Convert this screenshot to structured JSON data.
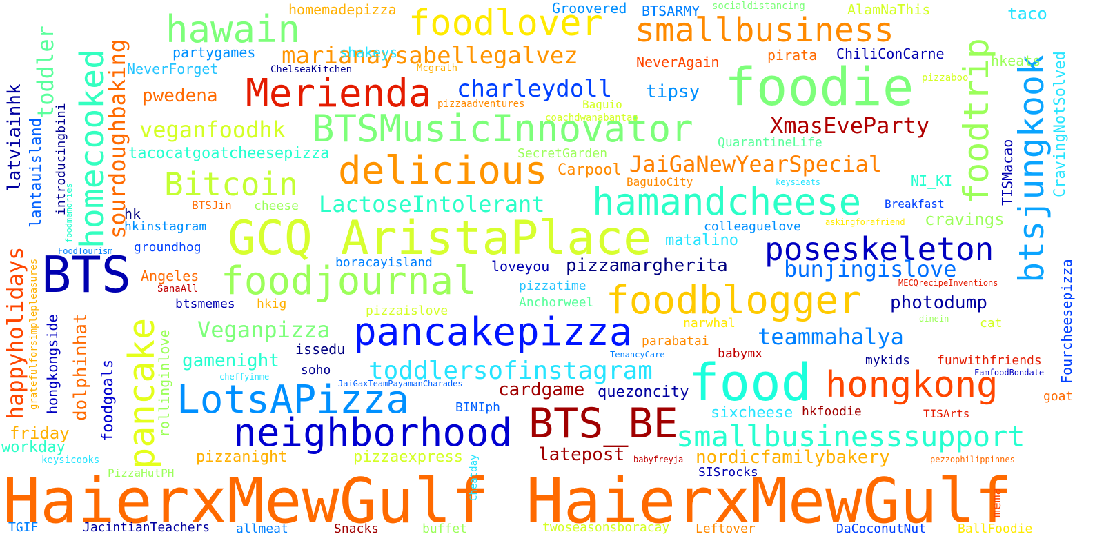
{
  "words": [
    {
      "text": "HaierxMewGulf HaierxMewGulf",
      "color": "#ff6a00",
      "vertical": false
    },
    {
      "text": "GCQ AristaPlace",
      "color": "#d7ff2f",
      "vertical": false
    },
    {
      "text": "food",
      "color": "#1cffdc",
      "vertical": false
    },
    {
      "text": "foodie",
      "color": "#7dff7a",
      "vertical": false
    },
    {
      "text": "BTS",
      "color": "#0000b0",
      "vertical": false
    },
    {
      "text": "pancakepizza",
      "color": "#0014ff",
      "vertical": false
    },
    {
      "text": "neighborhood",
      "color": "#0000d0",
      "vertical": false
    },
    {
      "text": "BTS_BE",
      "color": "#a00000",
      "vertical": false
    },
    {
      "text": "foodjournal",
      "color": "#9cff5a",
      "vertical": false
    },
    {
      "text": "BTSMusicInnovator",
      "color": "#7dff7a",
      "vertical": false
    },
    {
      "text": "hamandcheese",
      "color": "#2cffc8",
      "vertical": false
    },
    {
      "text": "LotsAPizza",
      "color": "#0090ff",
      "vertical": false
    },
    {
      "text": "smallbusiness",
      "color": "#ff8a00",
      "vertical": false
    },
    {
      "text": "foodlover",
      "color": "#ffea00",
      "vertical": false
    },
    {
      "text": "hawain",
      "color": "#7dff7a",
      "vertical": false
    },
    {
      "text": "Merienda",
      "color": "#e41b00",
      "vertical": false
    },
    {
      "text": "delicious",
      "color": "#ff9400",
      "vertical": false
    },
    {
      "text": "foodblogger",
      "color": "#ffca00",
      "vertical": false
    },
    {
      "text": "hongkong",
      "color": "#ff4600",
      "vertical": false
    },
    {
      "text": "smallbusinesssupport",
      "color": "#26ffd0",
      "vertical": false
    },
    {
      "text": "poseskeleton",
      "color": "#0000c0",
      "vertical": false
    },
    {
      "text": "Bitcoin",
      "color": "#c4ff34",
      "vertical": false
    },
    {
      "text": "toddlersofinstagram",
      "color": "#26e4ff",
      "vertical": false
    },
    {
      "text": "homecooked",
      "color": "#34ffc0",
      "vertical": true
    },
    {
      "text": "pancake",
      "color": "#e4ff1c",
      "vertical": true
    },
    {
      "text": "btsjungkook",
      "color": "#0aa4ff",
      "vertical": true
    },
    {
      "text": "foodtrip",
      "color": "#9cff5a",
      "vertical": true
    },
    {
      "text": "marianaysabellegalvez",
      "color": "#ff9400",
      "vertical": false
    },
    {
      "text": "charleydoll",
      "color": "#0040ff",
      "vertical": false
    },
    {
      "text": "veganfoodhk",
      "color": "#d4ff26",
      "vertical": false
    },
    {
      "text": "XmasEveParty",
      "color": "#b00000",
      "vertical": false
    },
    {
      "text": "JaiGaNewYearSpecial",
      "color": "#ff8000",
      "vertical": false
    },
    {
      "text": "LactoseIntolerant",
      "color": "#2cffc8",
      "vertical": false
    },
    {
      "text": "bunjingislove",
      "color": "#0070ff",
      "vertical": false
    },
    {
      "text": "Veganpizza",
      "color": "#7dff7a",
      "vertical": false
    },
    {
      "text": "teammahalya",
      "color": "#0080ff",
      "vertical": false
    },
    {
      "text": "pizzamargherita",
      "color": "#000080",
      "vertical": false
    },
    {
      "text": "photodump",
      "color": "#0000a0",
      "vertical": false
    },
    {
      "text": "cardgame",
      "color": "#a00000",
      "vertical": false
    },
    {
      "text": "nordicfamilybakery",
      "color": "#ffb000",
      "vertical": false
    },
    {
      "text": "toddler",
      "color": "#5aff9c",
      "vertical": true
    },
    {
      "text": "sourdoughbaking",
      "color": "#ff6a00",
      "vertical": true
    },
    {
      "text": "happyholidays",
      "color": "#ff4600",
      "vertical": true
    },
    {
      "text": "dolphinhat",
      "color": "#ff6a00",
      "vertical": true
    },
    {
      "text": "latviainhk",
      "color": "#0000a0",
      "vertical": true
    },
    {
      "text": "lantauisland",
      "color": "#0060ff",
      "vertical": true
    },
    {
      "text": "introducingbini",
      "color": "#000090",
      "vertical": true
    },
    {
      "text": "hongkongside",
      "color": "#0000c0",
      "vertical": true
    },
    {
      "text": "foodgoals",
      "color": "#0000d0",
      "vertical": true
    },
    {
      "text": "rollinginlove",
      "color": "#9cff5a",
      "vertical": true
    },
    {
      "text": "gratefulforsimplepleasures",
      "color": "#ffb000",
      "vertical": true
    },
    {
      "text": "foodmemories",
      "color": "#26ffd0",
      "vertical": true
    },
    {
      "text": "CravingNotSolved",
      "color": "#26e4ff",
      "vertical": true
    },
    {
      "text": "Fourcheesepizza",
      "color": "#0040ff",
      "vertical": true
    },
    {
      "text": "TISMacao",
      "color": "#0000b0",
      "vertical": true
    },
    {
      "text": "Cheatday",
      "color": "#26e4ff",
      "vertical": true
    },
    {
      "text": "mema",
      "color": "#ff4600",
      "vertical": true
    },
    {
      "text": "pwedena",
      "color": "#ff6a00",
      "vertical": false
    },
    {
      "text": "tipsy",
      "color": "#0090ff",
      "vertical": false
    },
    {
      "text": "tacocatgoatcheesepizza",
      "color": "#26ffd0",
      "vertical": false
    },
    {
      "text": "Carpool",
      "color": "#ff8a00",
      "vertical": false
    },
    {
      "text": "cravings",
      "color": "#9cff5a",
      "vertical": false
    },
    {
      "text": "gamenight",
      "color": "#26ffd0",
      "vertical": false
    },
    {
      "text": "matalino",
      "color": "#26e4ff",
      "vertical": false
    },
    {
      "text": "quezoncity",
      "color": "#0000a0",
      "vertical": false
    },
    {
      "text": "sixcheese",
      "color": "#26e4ff",
      "vertical": false
    },
    {
      "text": "latepost",
      "color": "#a00000",
      "vertical": false
    },
    {
      "text": "friday",
      "color": "#ffb000",
      "vertical": false
    },
    {
      "text": "workday",
      "color": "#2cffc8",
      "vertical": false
    },
    {
      "text": "pizzanight",
      "color": "#ffb000",
      "vertical": false
    },
    {
      "text": "pizzaexpress",
      "color": "#d4ff26",
      "vertical": false
    },
    {
      "text": "partygames",
      "color": "#0090ff",
      "vertical": false
    },
    {
      "text": "NeverForget",
      "color": "#26c4ff",
      "vertical": false
    },
    {
      "text": "shakeys",
      "color": "#26e4ff",
      "vertical": false
    },
    {
      "text": "homemadepizza",
      "color": "#ffb000",
      "vertical": false
    },
    {
      "text": "Groovered",
      "color": "#0090ff",
      "vertical": false
    },
    {
      "text": "BTSARMY",
      "color": "#0080ff",
      "vertical": false
    },
    {
      "text": "socialdistancing",
      "color": "#7dff7a",
      "vertical": false
    },
    {
      "text": "AlamNaThis",
      "color": "#d4ff26",
      "vertical": false
    },
    {
      "text": "taco",
      "color": "#26e4ff",
      "vertical": false
    },
    {
      "text": "pirata",
      "color": "#ff6a00",
      "vertical": false
    },
    {
      "text": "ChiliConCarne",
      "color": "#0000b0",
      "vertical": false
    },
    {
      "text": "NeverAgain",
      "color": "#ff4600",
      "vertical": false
    },
    {
      "text": "hkeats",
      "color": "#9cff5a",
      "vertical": false
    },
    {
      "text": "pizzaboo",
      "color": "#d4ff26",
      "vertical": false
    },
    {
      "text": "ChelseaKitchen",
      "color": "#000090",
      "vertical": false
    },
    {
      "text": "Mcgrath",
      "color": "#ffb000",
      "vertical": false
    },
    {
      "text": "pizzaadventures",
      "color": "#ff8a00",
      "vertical": false
    },
    {
      "text": "Baguio",
      "color": "#d4ff26",
      "vertical": false
    },
    {
      "text": "coachdwanabantao",
      "color": "#d4ff26",
      "vertical": false
    },
    {
      "text": "QuarantineLife",
      "color": "#5aff9c",
      "vertical": false
    },
    {
      "text": "SecretGarden",
      "color": "#9cff5a",
      "vertical": false
    },
    {
      "text": "BaguioCity",
      "color": "#ff8a00",
      "vertical": false
    },
    {
      "text": "keysieats",
      "color": "#26e4ff",
      "vertical": false
    },
    {
      "text": "NI_KI",
      "color": "#26ffd0",
      "vertical": false
    },
    {
      "text": "Breakfast",
      "color": "#0040ff",
      "vertical": false
    },
    {
      "text": "askingforafriend",
      "color": "#ffea00",
      "vertical": false
    },
    {
      "text": "colleaguelove",
      "color": "#0090ff",
      "vertical": false
    },
    {
      "text": "BTSJin",
      "color": "#ff6a00",
      "vertical": false
    },
    {
      "text": "cheese",
      "color": "#9cff5a",
      "vertical": false
    },
    {
      "text": "hk",
      "color": "#000080",
      "vertical": false
    },
    {
      "text": "hkinstagram",
      "color": "#0090ff",
      "vertical": false
    },
    {
      "text": "groundhog",
      "color": "#0040ff",
      "vertical": false
    },
    {
      "text": "FoodTourism",
      "color": "#0080ff",
      "vertical": false
    },
    {
      "text": "boracayisland",
      "color": "#0080ff",
      "vertical": false
    },
    {
      "text": "loveyou",
      "color": "#0000b0",
      "vertical": false
    },
    {
      "text": "Angeles",
      "color": "#ff6a00",
      "vertical": false
    },
    {
      "text": "SanaAll",
      "color": "#c00000",
      "vertical": false
    },
    {
      "text": "btsmemes",
      "color": "#0000b0",
      "vertical": false
    },
    {
      "text": "hkig",
      "color": "#ffb000",
      "vertical": false
    },
    {
      "text": "pizzaislove",
      "color": "#d4ff26",
      "vertical": false
    },
    {
      "text": "pizzatime",
      "color": "#26c4ff",
      "vertical": false
    },
    {
      "text": "Anchorweel",
      "color": "#5aff9c",
      "vertical": false
    },
    {
      "text": "MECQrecipeInventions",
      "color": "#e41b00",
      "vertical": false
    },
    {
      "text": "narwhal",
      "color": "#ffea00",
      "vertical": false
    },
    {
      "text": "dinein",
      "color": "#9cff5a",
      "vertical": false
    },
    {
      "text": "cat",
      "color": "#d4ff26",
      "vertical": false
    },
    {
      "text": "parabatai",
      "color": "#ff8a00",
      "vertical": false
    },
    {
      "text": "babymx",
      "color": "#c00000",
      "vertical": false
    },
    {
      "text": "issedu",
      "color": "#000080",
      "vertical": false
    },
    {
      "text": "soho",
      "color": "#000090",
      "vertical": false
    },
    {
      "text": "TenancyCare",
      "color": "#0080ff",
      "vertical": false
    },
    {
      "text": "cheffyinme",
      "color": "#26e4ff",
      "vertical": false
    },
    {
      "text": "JaiGaxTeamPayamanCharades",
      "color": "#0060ff",
      "vertical": false
    },
    {
      "text": "mykids",
      "color": "#000090",
      "vertical": false
    },
    {
      "text": "funwithfriends",
      "color": "#e41b00",
      "vertical": false
    },
    {
      "text": "FamfoodBondate",
      "color": "#0000c0",
      "vertical": false
    },
    {
      "text": "goat",
      "color": "#ff6a00",
      "vertical": false
    },
    {
      "text": "BINIph",
      "color": "#0060ff",
      "vertical": false
    },
    {
      "text": "hkfoodie",
      "color": "#a00000",
      "vertical": false
    },
    {
      "text": "TISArts",
      "color": "#e41b00",
      "vertical": false
    },
    {
      "text": "keysicooks",
      "color": "#26e4ff",
      "vertical": false
    },
    {
      "text": "PizzaHutPH",
      "color": "#9cff5a",
      "vertical": false
    },
    {
      "text": "babyfreyja",
      "color": "#c00000",
      "vertical": false
    },
    {
      "text": "SISrocks",
      "color": "#0000b0",
      "vertical": false
    },
    {
      "text": "pezzophilippinnes",
      "color": "#ff6a00",
      "vertical": false
    },
    {
      "text": "TGIF",
      "color": "#0080ff",
      "vertical": false
    },
    {
      "text": "JacintianTeachers",
      "color": "#0000a0",
      "vertical": false
    },
    {
      "text": "allmeat",
      "color": "#0080ff",
      "vertical": false
    },
    {
      "text": "Snacks",
      "color": "#a00000",
      "vertical": false
    },
    {
      "text": "buffet",
      "color": "#9cff5a",
      "vertical": false
    },
    {
      "text": "twoseasonsboracay",
      "color": "#d4ff26",
      "vertical": false
    },
    {
      "text": "Leftover",
      "color": "#ff8a00",
      "vertical": false
    },
    {
      "text": "DaCoconutNut",
      "color": "#0040ff",
      "vertical": false
    },
    {
      "text": "BallFoodie",
      "color": "#ffea00",
      "vertical": false
    }
  ]
}
